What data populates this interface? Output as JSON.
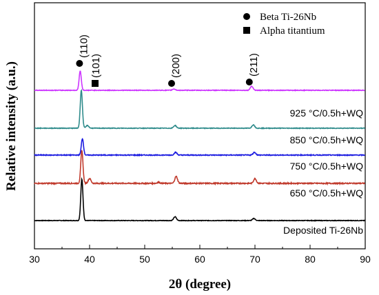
{
  "chart_data": {
    "type": "line",
    "title": "",
    "xlabel": "2θ (degree)",
    "ylabel": "Relative intensity (a.u.)",
    "xlim": [
      30,
      90
    ],
    "xticks": [
      30,
      40,
      50,
      60,
      70,
      80,
      90
    ],
    "grid": false,
    "y_axis_ticks": false,
    "legend": {
      "placement": "top-right",
      "entries": [
        {
          "marker": "circle",
          "label": "Beta Ti-26Nb"
        },
        {
          "marker": "square",
          "label": "Alpha titantium"
        }
      ]
    },
    "series": [
      {
        "label": "Deposited Ti-26Nb",
        "color": "#000000",
        "offset": 0,
        "peaks": [
          [
            38.6,
            60
          ],
          [
            55.5,
            5.5
          ],
          [
            69.8,
            3
          ]
        ]
      },
      {
        "label": "650 °C/0.5h+WQ",
        "color": "#c0392b",
        "offset": 1,
        "peaks": [
          [
            38.6,
            48
          ],
          [
            40.0,
            7
          ],
          [
            55.7,
            10
          ],
          [
            70.0,
            7
          ],
          [
            52.5,
            1.5
          ]
        ]
      },
      {
        "label": "750 °C/0.5h+WQ",
        "color": "#1a1ae0",
        "offset": 2,
        "peaks": [
          [
            38.7,
            24
          ],
          [
            55.6,
            4
          ],
          [
            69.9,
            4
          ]
        ]
      },
      {
        "label": "850 °C/0.5h+WQ",
        "color": "#2e8b8b",
        "offset": 3,
        "peaks": [
          [
            38.5,
            55
          ],
          [
            39.6,
            4
          ],
          [
            55.5,
            4
          ],
          [
            69.7,
            5
          ]
        ]
      },
      {
        "label": "925 °C/0.5h+WQ",
        "color": "#cc33ff",
        "offset": 4,
        "peaks": [
          [
            38.3,
            28
          ],
          [
            55.3,
            2
          ],
          [
            69.4,
            6
          ]
        ]
      }
    ],
    "annotations": [
      {
        "text": "(110)",
        "x": 38.8,
        "marker": "circle"
      },
      {
        "text": "(101)",
        "x": 40.0,
        "marker": "square"
      },
      {
        "text": "(200)",
        "x": 55.5,
        "marker": "circle"
      },
      {
        "text": "(211)",
        "x": 69.6,
        "marker": "circle"
      }
    ]
  }
}
